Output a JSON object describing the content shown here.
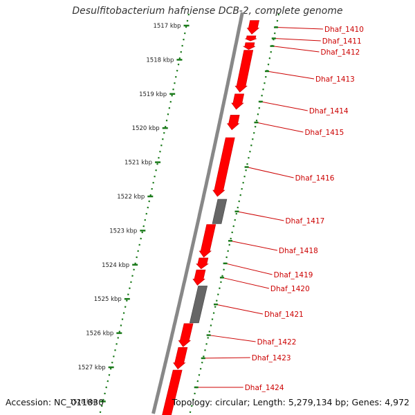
{
  "header": {
    "title": "Desulfitobacterium hafniense DCB-2, complete genome"
  },
  "footer": {
    "accession": "Accession: NC_011830",
    "topology": "Topology: circular; Length: 5,279,134 bp; Genes: 4,972"
  },
  "colors": {
    "gene_fill": "#ff0000",
    "pseudo_fill": "#666666",
    "tick_green": "#1a7a1a",
    "label_red": "#cc0000",
    "backbone": "#888888"
  },
  "ruler": [
    {
      "kbp": 1517,
      "label": "1517 kbp"
    },
    {
      "kbp": 1518,
      "label": "1518 kbp"
    },
    {
      "kbp": 1519,
      "label": "1519 kbp"
    },
    {
      "kbp": 1520,
      "label": "1520 kbp"
    },
    {
      "kbp": 1521,
      "label": "1521 kbp"
    },
    {
      "kbp": 1522,
      "label": "1522 kbp"
    },
    {
      "kbp": 1523,
      "label": "1523 kbp"
    },
    {
      "kbp": 1524,
      "label": "1524 kbp"
    },
    {
      "kbp": 1525,
      "label": "1525 kbp"
    },
    {
      "kbp": 1526,
      "label": "1526 kbp"
    },
    {
      "kbp": 1527,
      "label": "1527 kbp"
    },
    {
      "kbp": 1528,
      "label": "1528 kbp"
    }
  ],
  "genes": [
    {
      "id": "Dhaf_1410",
      "start": 1516.85,
      "end": 1517.25,
      "type": "cds"
    },
    {
      "id": "Dhaf_1411",
      "start": 1517.3,
      "end": 1517.45,
      "type": "cds"
    },
    {
      "id": "Dhaf_1412",
      "start": 1517.5,
      "end": 1517.7,
      "type": "cds"
    },
    {
      "id": "Dhaf_1413",
      "start": 1517.72,
      "end": 1518.95,
      "type": "cds"
    },
    {
      "id": "Dhaf_1414",
      "start": 1519.0,
      "end": 1519.45,
      "type": "cds"
    },
    {
      "id": "Dhaf_1415",
      "start": 1519.62,
      "end": 1520.05,
      "type": "cds"
    },
    {
      "id": "Dhaf_1416",
      "start": 1520.28,
      "end": 1522.0,
      "type": "cds"
    },
    {
      "id": "Dhaf_1417",
      "start": 1522.08,
      "end": 1522.8,
      "type": "pseudo"
    },
    {
      "id": "Dhaf_1418",
      "start": 1522.82,
      "end": 1523.78,
      "type": "cds"
    },
    {
      "id": "Dhaf_1419",
      "start": 1523.8,
      "end": 1524.12,
      "type": "cds"
    },
    {
      "id": "Dhaf_1420",
      "start": 1524.15,
      "end": 1524.6,
      "type": "cds"
    },
    {
      "id": "Dhaf_1421",
      "start": 1524.62,
      "end": 1525.7,
      "type": "pseudo"
    },
    {
      "id": "Dhaf_1422",
      "start": 1525.72,
      "end": 1526.4,
      "type": "cds"
    },
    {
      "id": "Dhaf_1423",
      "start": 1526.42,
      "end": 1527.05,
      "type": "cds"
    },
    {
      "id": "Dhaf_1424",
      "start": 1527.08,
      "end": 1528.9,
      "type": "cds"
    }
  ]
}
